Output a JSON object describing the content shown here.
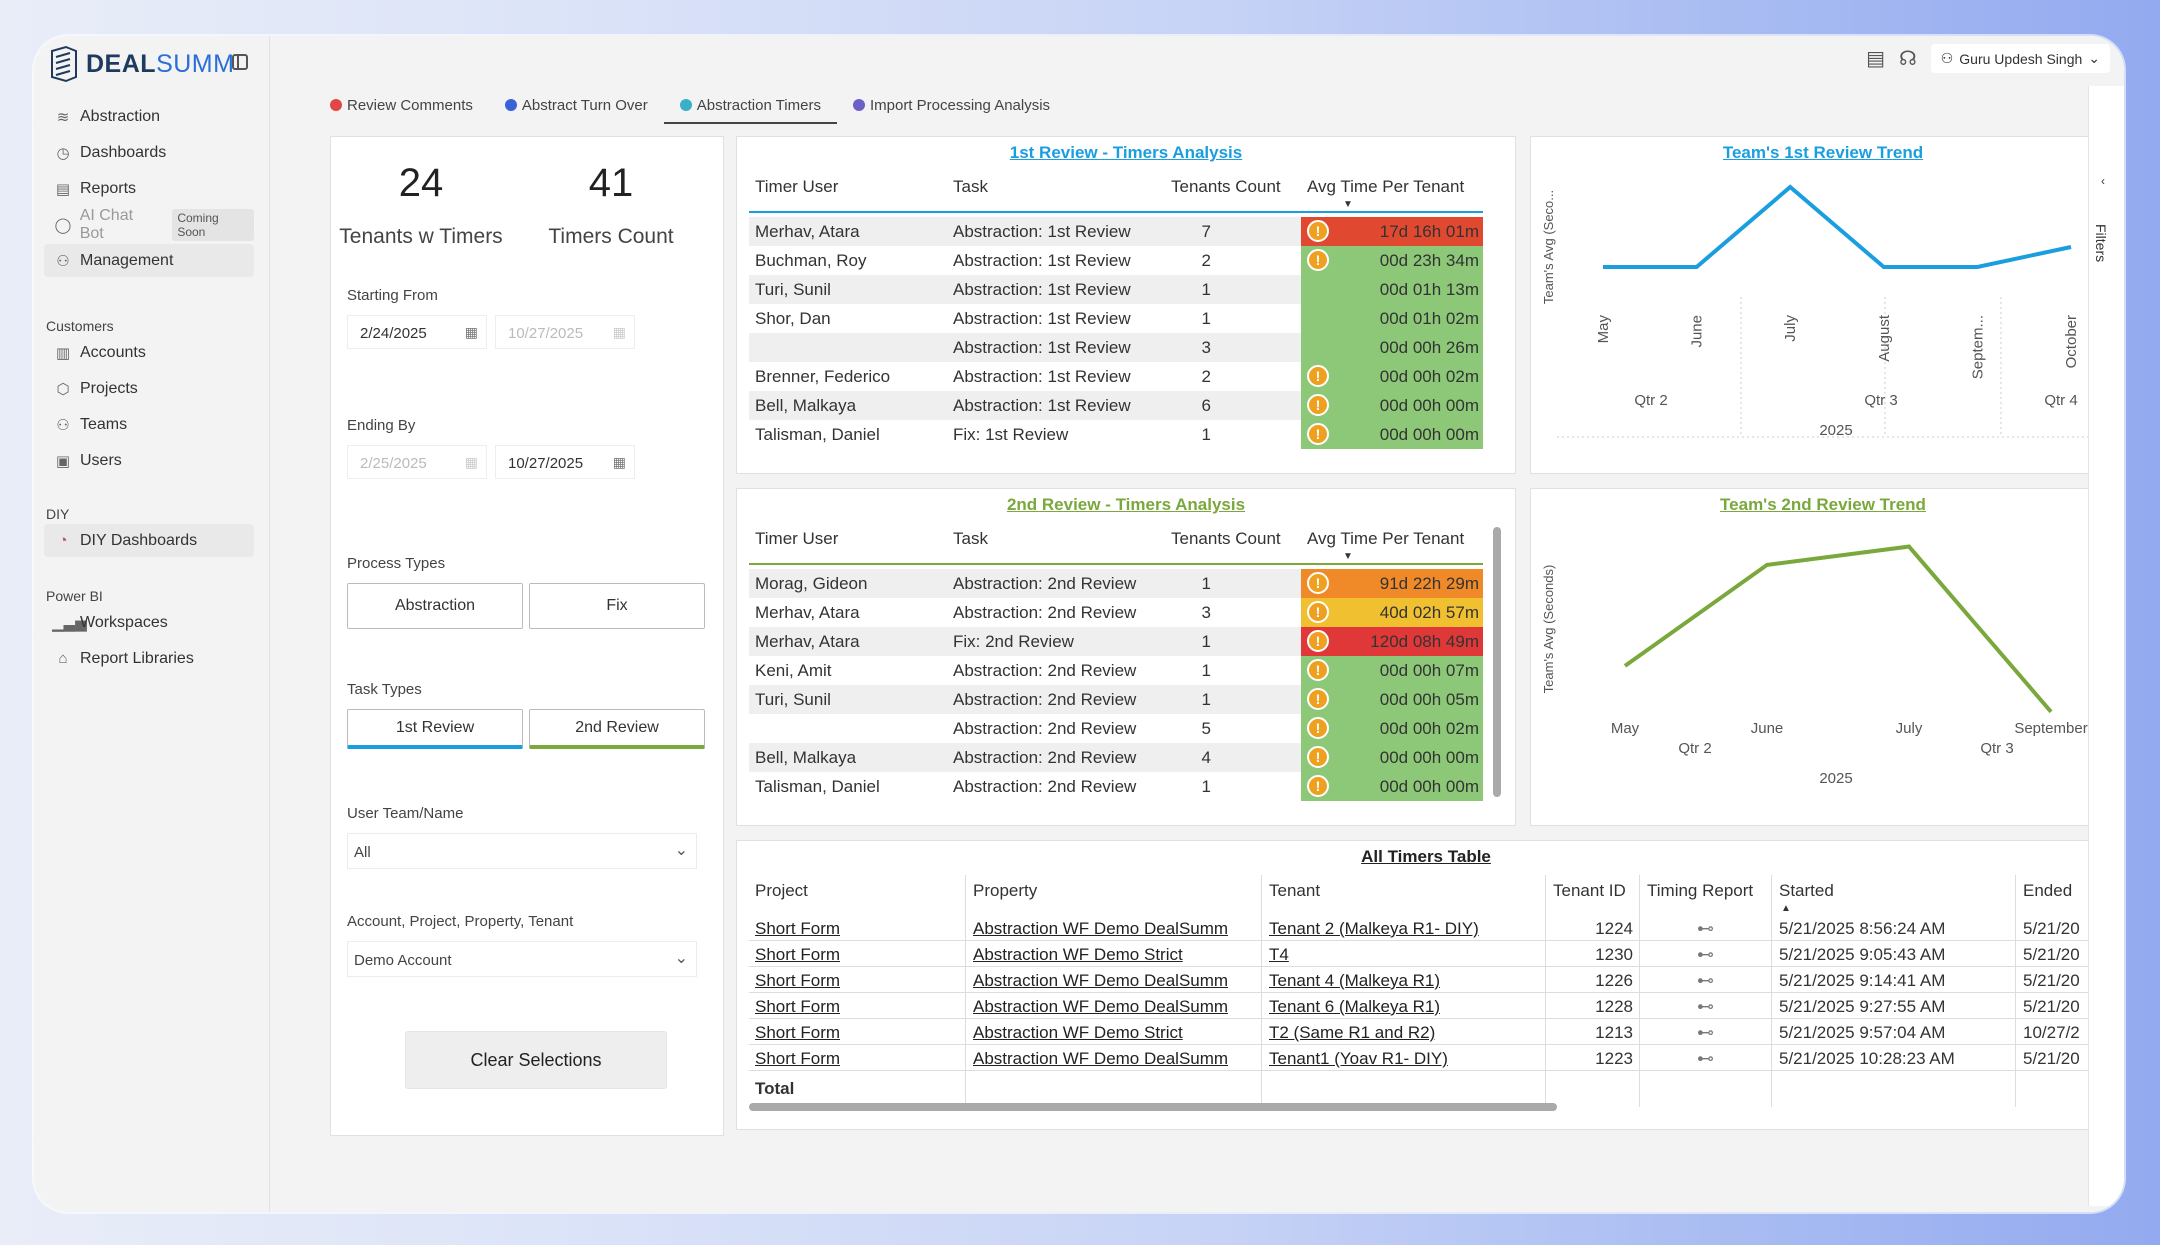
{
  "app": {
    "brand_a": "DEAL",
    "brand_b": "SUMM"
  },
  "sidebar": {
    "main": [
      {
        "label": "Abstraction"
      },
      {
        "label": "Dashboards"
      },
      {
        "label": "Reports"
      },
      {
        "label": "AI Chat Bot",
        "badge": "Coming Soon"
      },
      {
        "label": "Management"
      }
    ],
    "customers_title": "Customers",
    "customers": [
      {
        "label": "Accounts"
      },
      {
        "label": "Projects"
      },
      {
        "label": "Teams"
      },
      {
        "label": "Users"
      }
    ],
    "diy_title": "DIY",
    "diy": [
      {
        "label": "DIY Dashboards"
      }
    ],
    "powerbi_title": "Power BI",
    "powerbi": [
      {
        "label": "Workspaces"
      },
      {
        "label": "Report Libraries"
      }
    ]
  },
  "topbar": {
    "user": "Guru Updesh Singh"
  },
  "tabs": [
    {
      "label": "Review Comments",
      "color": "#e04848"
    },
    {
      "label": "Abstract Turn Over",
      "color": "#3a62d8"
    },
    {
      "label": "Abstraction Timers",
      "color": "#3ab0c8"
    },
    {
      "label": "Import Processing Analysis",
      "color": "#6a60c8"
    }
  ],
  "kpis": [
    {
      "value": "24",
      "label": "Tenants w Timers"
    },
    {
      "value": "41",
      "label": "Timers Count"
    }
  ],
  "filters": {
    "starting_from": "Starting From",
    "start_date_1": "2/24/2025",
    "start_date_2": "10/27/2025",
    "ending_by": "Ending By",
    "end_date_1": "2/25/2025",
    "end_date_2": "10/27/2025",
    "process_types": "Process Types",
    "process_a": "Abstraction",
    "process_b": "Fix",
    "task_types": "Task Types",
    "task_a": "1st Review",
    "task_b": "2nd Review",
    "user_team": "User Team/Name",
    "user_team_value": "All",
    "account": "Account, Project, Property, Tenant",
    "account_value": "Demo Account",
    "clear": "Clear Selections"
  },
  "review1": {
    "title": "1st Review - Timers Analysis",
    "cols": [
      "Timer User",
      "Task",
      "Tenants Count",
      "Avg Time Per Tenant"
    ],
    "rows": [
      {
        "user": "Merhav, Atara",
        "task": "Abstraction: 1st Review",
        "count": "7",
        "avg": "17d 16h 01m",
        "color": "#e04830",
        "warn": true
      },
      {
        "user": "Buchman, Roy",
        "task": "Abstraction: 1st Review",
        "count": "2",
        "avg": "00d 23h 34m",
        "color": "#8cc878",
        "warn": true
      },
      {
        "user": "Turi, Sunil",
        "task": "Abstraction: 1st Review",
        "count": "1",
        "avg": "00d 01h 13m",
        "color": "#8cc878",
        "warn": false
      },
      {
        "user": "Shor, Dan",
        "task": "Abstraction: 1st Review",
        "count": "1",
        "avg": "00d 01h 02m",
        "color": "#8cc878",
        "warn": false
      },
      {
        "user": "",
        "task": "Abstraction: 1st Review",
        "count": "3",
        "avg": "00d 00h 26m",
        "color": "#8cc878",
        "warn": false
      },
      {
        "user": "Brenner, Federico",
        "task": "Abstraction: 1st Review",
        "count": "2",
        "avg": "00d 00h 02m",
        "color": "#8cc878",
        "warn": true
      },
      {
        "user": "Bell, Malkaya",
        "task": "Abstraction: 1st Review",
        "count": "6",
        "avg": "00d 00h 00m",
        "color": "#8cc878",
        "warn": true
      },
      {
        "user": "Talisman, Daniel",
        "task": "Fix: 1st Review",
        "count": "1",
        "avg": "00d 00h 00m",
        "color": "#8cc878",
        "warn": true
      }
    ]
  },
  "review2": {
    "title": "2nd Review - Timers Analysis",
    "cols": [
      "Timer User",
      "Task",
      "Tenants Count",
      "Avg Time Per Tenant"
    ],
    "rows": [
      {
        "user": "Morag, Gideon",
        "task": "Abstraction: 2nd Review",
        "count": "1",
        "avg": "91d 22h 29m",
        "color": "#f08a28",
        "warn": true
      },
      {
        "user": "Merhav, Atara",
        "task": "Abstraction: 2nd Review",
        "count": "3",
        "avg": "40d 02h 57m",
        "color": "#f0c030",
        "warn": true
      },
      {
        "user": "Merhav, Atara",
        "task": "Fix: 2nd Review",
        "count": "1",
        "avg": "120d 08h 49m",
        "color": "#e03838",
        "warn": true
      },
      {
        "user": "Keni, Amit",
        "task": "Abstraction: 2nd Review",
        "count": "1",
        "avg": "00d 00h 07m",
        "color": "#8cc878",
        "warn": true
      },
      {
        "user": "Turi, Sunil",
        "task": "Abstraction: 2nd Review",
        "count": "1",
        "avg": "00d 00h 05m",
        "color": "#8cc878",
        "warn": true
      },
      {
        "user": "",
        "task": "Abstraction: 2nd Review",
        "count": "5",
        "avg": "00d 00h 02m",
        "color": "#8cc878",
        "warn": true
      },
      {
        "user": "Bell, Malkaya",
        "task": "Abstraction: 2nd Review",
        "count": "4",
        "avg": "00d 00h 00m",
        "color": "#8cc878",
        "warn": true
      },
      {
        "user": "Talisman, Daniel",
        "task": "Abstraction: 2nd Review",
        "count": "1",
        "avg": "00d 00h 00m",
        "color": "#8cc878",
        "warn": true
      }
    ]
  },
  "chart_data": [
    {
      "type": "line",
      "title": "Team's 1st Review Trend",
      "ylabel": "Team's Avg (Seco...",
      "categories": [
        "May",
        "June",
        "July",
        "August",
        "Septem...",
        "October"
      ],
      "quarters": [
        "Qtr 2",
        "Qtr 3",
        "Qtr 4"
      ],
      "year": "2025",
      "color": "#1a9ee0",
      "values": [
        20,
        20,
        100,
        20,
        20,
        40
      ],
      "ylim": [
        0,
        110
      ]
    },
    {
      "type": "line",
      "title": "Team's 2nd Review Trend",
      "ylabel": "Team's Avg (Seconds)",
      "categories": [
        "May",
        "June",
        "July",
        "September"
      ],
      "quarters": [
        "Qtr 2",
        "Qtr 3"
      ],
      "year": "2025",
      "color": "#7aa83c",
      "values": [
        30,
        85,
        95,
        5
      ],
      "ylim": [
        0,
        110
      ]
    }
  ],
  "timers_table": {
    "title": "All Timers Table",
    "cols": [
      "Project",
      "Property",
      "Tenant",
      "Tenant ID",
      "Timing Report",
      "Started",
      "Ended"
    ],
    "rows": [
      {
        "project": "Short Form",
        "property": "Abstraction WF Demo DealSumm",
        "tenant": "Tenant 2 (Malkeya R1- DIY)",
        "id": "1224",
        "started": "5/21/2025 8:56:24 AM",
        "ended": "5/21/20"
      },
      {
        "project": "Short Form",
        "property": "Abstraction WF Demo Strict",
        "tenant": "T4",
        "id": "1230",
        "started": "5/21/2025 9:05:43 AM",
        "ended": "5/21/20"
      },
      {
        "project": "Short Form",
        "property": "Abstraction WF Demo DealSumm",
        "tenant": "Tenant 4 (Malkeya R1)",
        "id": "1226",
        "started": "5/21/2025 9:14:41 AM",
        "ended": "5/21/20"
      },
      {
        "project": "Short Form",
        "property": "Abstraction WF Demo DealSumm",
        "tenant": "Tenant 6 (Malkeya R1)",
        "id": "1228",
        "started": "5/21/2025 9:27:55 AM",
        "ended": "5/21/20"
      },
      {
        "project": "Short Form",
        "property": "Abstraction WF Demo Strict",
        "tenant": "T2 (Same R1 and R2)",
        "id": "1213",
        "started": "5/21/2025 9:57:04 AM",
        "ended": "10/27/2"
      },
      {
        "project": "Short Form",
        "property": "Abstraction WF Demo DealSumm",
        "tenant": "Tenant1 (Yoav R1- DIY)",
        "id": "1223",
        "started": "5/21/2025 10:28:23 AM",
        "ended": "5/21/20"
      }
    ],
    "total": "Total"
  },
  "filters_rail": "Filters"
}
